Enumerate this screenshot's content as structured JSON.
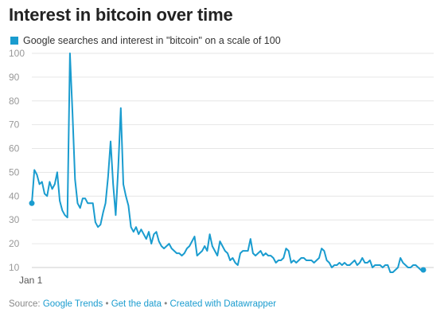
{
  "title": "Interest in bitcoin over time",
  "footer": {
    "source_label": "Source:",
    "source_link": "Google Trends",
    "sep": "•",
    "data_link": "Get the data",
    "created_link": "Created with Datawrapper"
  },
  "colors": {
    "series": "#1a9ccf",
    "grid": "#e6e6e6",
    "tick_text": "#999999",
    "link": "#1a9ccf"
  },
  "chart_data": {
    "type": "line",
    "title": "Interest in bitcoin over time",
    "xlabel": "",
    "ylabel": "",
    "x_tick_labels": [
      "Jan 1"
    ],
    "ylim": [
      10,
      100
    ],
    "y_ticks": [
      10,
      20,
      30,
      40,
      50,
      60,
      70,
      80,
      90,
      100
    ],
    "grid": true,
    "legend_position": "top-left",
    "series": [
      {
        "name": "Google searches and interest in \"bitcoin\" on a scale of 100",
        "color": "#1a9ccf",
        "values": [
          37,
          51,
          49,
          45,
          46,
          41,
          40,
          46,
          43,
          45,
          50,
          38,
          34,
          32,
          31,
          100,
          75,
          47,
          37,
          35,
          39,
          39,
          37,
          37,
          37,
          29,
          27,
          28,
          33,
          37,
          48,
          63,
          45,
          32,
          52,
          77,
          45,
          40,
          36,
          27,
          25,
          27,
          24,
          26,
          24,
          22,
          25,
          20,
          24,
          25,
          21,
          19,
          18,
          19,
          20,
          18,
          17,
          16,
          16,
          15,
          16,
          18,
          19,
          21,
          23,
          15,
          16,
          17,
          19,
          17,
          24,
          19,
          17,
          15,
          21,
          19,
          17,
          16,
          13,
          14,
          12,
          11,
          16,
          17,
          17,
          17,
          22,
          16,
          15,
          16,
          17,
          15,
          16,
          15,
          15,
          14,
          12,
          13,
          13,
          14,
          18,
          17,
          12,
          13,
          12,
          13,
          14,
          14,
          13,
          13,
          13,
          12,
          13,
          14,
          18,
          17,
          13,
          12,
          10,
          11,
          11,
          12,
          11,
          12,
          11,
          11,
          12,
          13,
          11,
          12,
          14,
          12,
          12,
          13,
          10,
          11,
          11,
          11,
          10,
          11,
          11,
          8,
          8,
          9,
          10,
          14,
          12,
          11,
          10,
          10,
          11,
          11,
          10,
          9,
          9
        ]
      }
    ]
  }
}
